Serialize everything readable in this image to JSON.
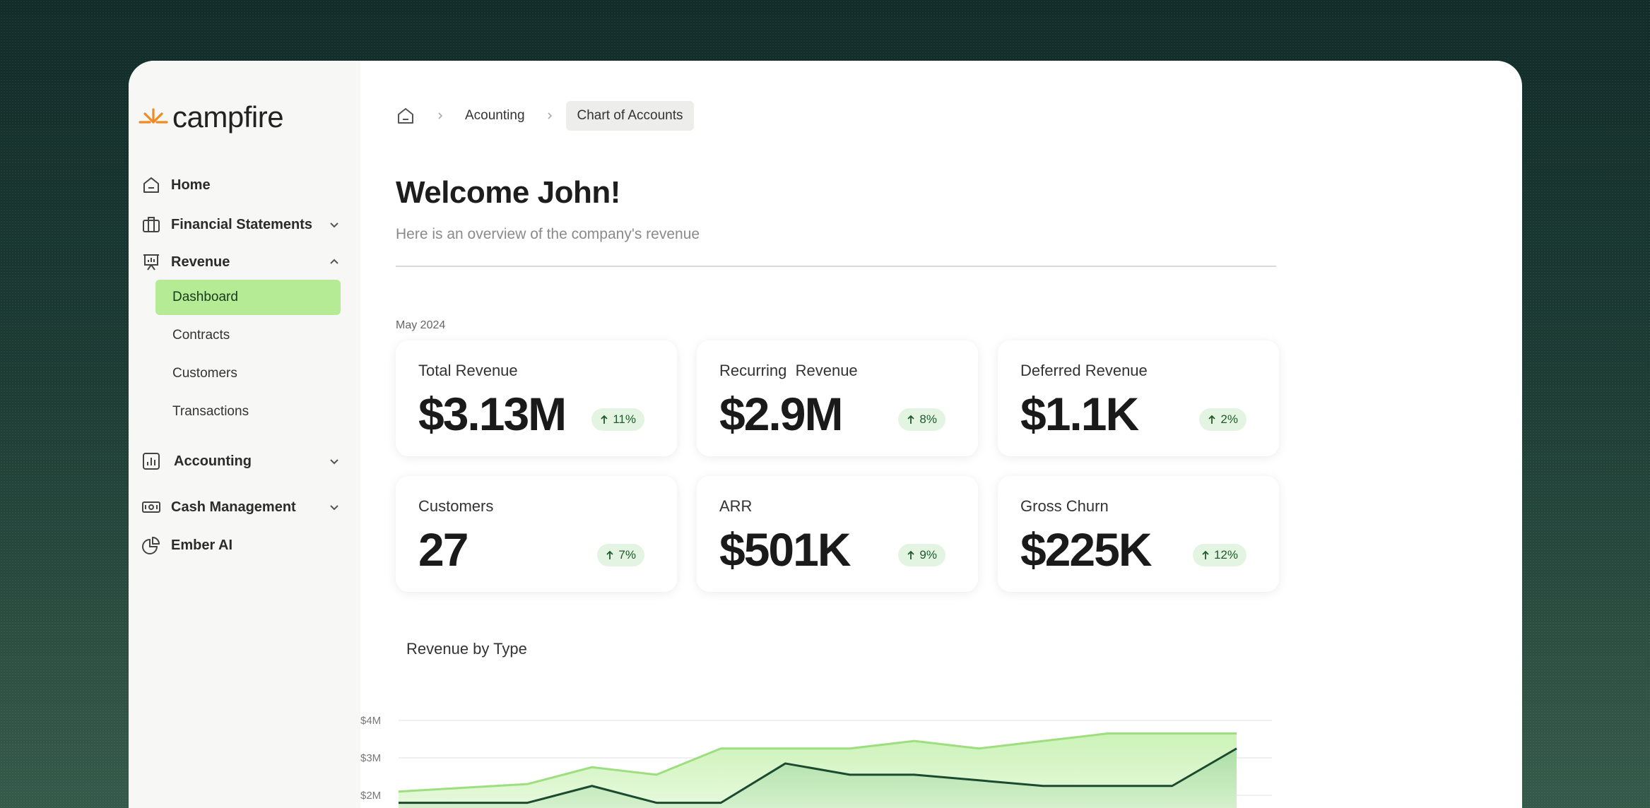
{
  "brand": {
    "name": "campfire",
    "accent": "#f08a24"
  },
  "sidebar": {
    "items": [
      {
        "label": "Home",
        "icon": "home-icon"
      },
      {
        "label": "Financial Statements",
        "icon": "briefcase-icon"
      },
      {
        "label": "Revenue",
        "icon": "presentation-chart-icon"
      },
      {
        "label": "Accounting",
        "icon": "bar-chart-icon"
      },
      {
        "label": "Cash Management",
        "icon": "cash-icon"
      },
      {
        "label": "Ember AI",
        "icon": "pie-chart-icon"
      }
    ],
    "revenue_sub": [
      {
        "label": "Dashboard",
        "active": true
      },
      {
        "label": "Contracts"
      },
      {
        "label": "Customers"
      },
      {
        "label": "Transactions"
      }
    ]
  },
  "breadcrumb": {
    "items": [
      "Acounting"
    ],
    "current": "Chart of Accounts"
  },
  "header": {
    "title": "Welcome John!",
    "subtitle": "Here is an overview of the company's revenue"
  },
  "period": "May 2024",
  "cards": [
    {
      "label": "Total Revenue",
      "value": "$3.13M",
      "change": "11%"
    },
    {
      "label": "Recurring  Revenue",
      "value": "$2.9M",
      "change": "8%"
    },
    {
      "label": "Deferred Revenue",
      "value": "$1.1K",
      "change": "2%"
    },
    {
      "label": "Customers",
      "value": "27",
      "change": "7%"
    },
    {
      "label": "ARR",
      "value": "$501K",
      "change": "9%"
    },
    {
      "label": "Gross Churn",
      "value": "$225K",
      "change": "12%"
    }
  ],
  "chart_data": {
    "type": "area",
    "title": "Revenue by Type",
    "y_ticks": [
      "$4M",
      "$3M",
      "$2M"
    ],
    "ylim": [
      1.2,
      4.0
    ],
    "x": [
      0,
      1,
      2,
      3,
      4,
      5,
      6,
      7,
      8,
      9,
      10,
      11,
      12,
      13
    ],
    "series": [
      {
        "color": "#9ddf7e",
        "values": [
          2.1,
          2.2,
          2.3,
          2.75,
          2.55,
          3.25,
          3.25,
          3.25,
          3.45,
          3.25,
          3.45,
          3.65,
          3.65,
          3.65
        ]
      },
      {
        "color": "#1b4a2f",
        "values": [
          1.8,
          1.8,
          1.8,
          2.25,
          1.8,
          1.8,
          2.85,
          2.55,
          2.55,
          2.4,
          2.25,
          2.25,
          2.25,
          3.25
        ]
      }
    ],
    "grid": true
  }
}
